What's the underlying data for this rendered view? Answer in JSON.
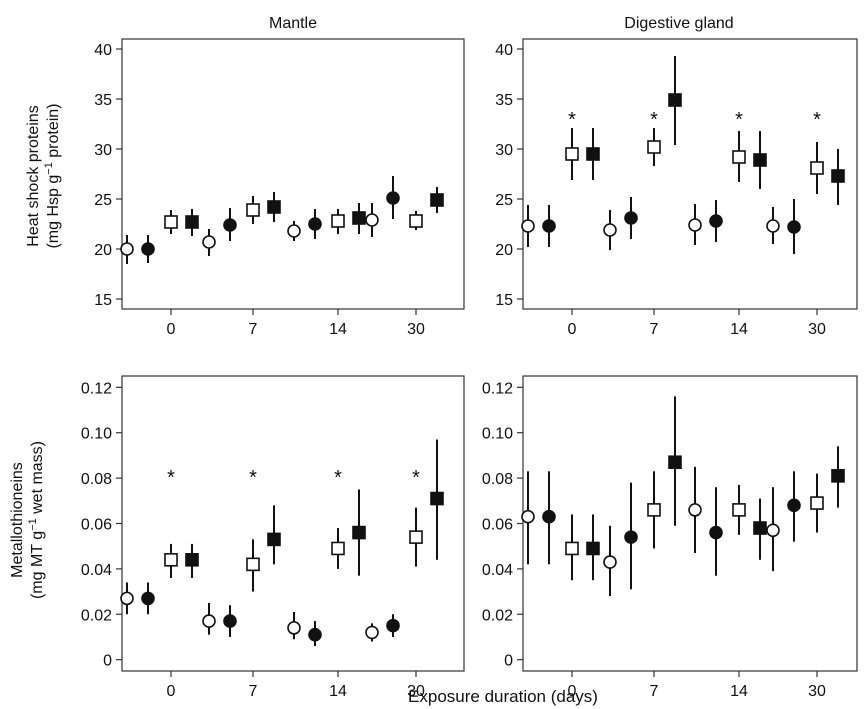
{
  "figure": {
    "xlabel": "Exposure duration (days)",
    "row_labels": [
      {
        "line1": "Heat shock proteins",
        "line2_pre": "(mg Hsp g",
        "sup": "−1",
        "line2_post": " protein)"
      },
      {
        "line1": "Metallothioneins",
        "line2_pre": "(mg MT g",
        "sup": "−1",
        "line2_post": " wet mass)"
      }
    ]
  },
  "colors": {
    "marker": "#111111",
    "open_fill": "#ffffff",
    "axis": "#333333"
  },
  "chart_data": [
    {
      "type": "scatter",
      "title": "Mantle",
      "ylabel": "Heat shock proteins (mg Hsp g−1 protein)",
      "ylim": [
        14,
        41
      ],
      "yticks": [
        15,
        20,
        25,
        30,
        35,
        40
      ],
      "ytick_labels": [
        "15",
        "20",
        "25",
        "30",
        "35",
        "40"
      ],
      "categories": [
        "0",
        "7",
        "14",
        "30"
      ],
      "series": [
        {
          "marker": "open-circle",
          "values": [
            20.0,
            20.7,
            21.8,
            22.9
          ],
          "err": [
            [
              18.5,
              21.4
            ],
            [
              19.3,
              22.0
            ],
            [
              20.8,
              22.8
            ],
            [
              21.2,
              24.6
            ]
          ]
        },
        {
          "marker": "filled-circle",
          "values": [
            20.0,
            22.4,
            22.5,
            25.1
          ],
          "err": [
            [
              18.6,
              21.4
            ],
            [
              20.8,
              24.1
            ],
            [
              21.0,
              24.0
            ],
            [
              23.0,
              27.3
            ]
          ]
        },
        {
          "marker": "open-square",
          "values": [
            22.7,
            23.9,
            22.8,
            22.8
          ],
          "err": [
            [
              21.5,
              23.9
            ],
            [
              22.5,
              25.3
            ],
            [
              21.5,
              24.0
            ],
            [
              21.9,
              23.8
            ]
          ]
        },
        {
          "marker": "filled-square",
          "values": [
            22.7,
            24.2,
            23.1,
            24.9
          ],
          "err": [
            [
              21.3,
              24.0
            ],
            [
              22.7,
              25.7
            ],
            [
              21.5,
              24.6
            ],
            [
              23.6,
              26.2
            ]
          ]
        }
      ],
      "significance": [
        "",
        "",
        "",
        ""
      ]
    },
    {
      "type": "scatter",
      "title": "Digestive gland",
      "ylabel": "",
      "ylim": [
        14,
        41
      ],
      "yticks": [
        15,
        20,
        25,
        30,
        35,
        40
      ],
      "ytick_labels": [
        "15",
        "20",
        "25",
        "30",
        "35",
        "40"
      ],
      "categories": [
        "0",
        "7",
        "14",
        "30"
      ],
      "series": [
        {
          "marker": "open-circle",
          "values": [
            22.3,
            21.9,
            22.4,
            22.3
          ],
          "err": [
            [
              20.2,
              24.4
            ],
            [
              19.9,
              23.9
            ],
            [
              20.4,
              24.5
            ],
            [
              20.5,
              24.2
            ]
          ]
        },
        {
          "marker": "filled-circle",
          "values": [
            22.3,
            23.1,
            22.8,
            22.2
          ],
          "err": [
            [
              20.2,
              24.4
            ],
            [
              21.0,
              25.2
            ],
            [
              20.7,
              24.9
            ],
            [
              19.5,
              25.0
            ]
          ]
        },
        {
          "marker": "open-square",
          "values": [
            29.5,
            30.2,
            29.2,
            28.1
          ],
          "err": [
            [
              26.9,
              32.1
            ],
            [
              28.3,
              32.1
            ],
            [
              26.7,
              31.8
            ],
            [
              25.5,
              30.7
            ]
          ]
        },
        {
          "marker": "filled-square",
          "values": [
            29.5,
            34.9,
            28.9,
            27.3
          ],
          "err": [
            [
              26.9,
              32.1
            ],
            [
              30.4,
              39.3
            ],
            [
              26.0,
              31.8
            ],
            [
              24.4,
              30.0
            ]
          ]
        }
      ],
      "significance": [
        "*",
        "*",
        "*",
        "*"
      ]
    },
    {
      "type": "scatter",
      "title": "",
      "ylabel": "Metallothioneins (mg MT g−1 wet mass)",
      "ylim": [
        -0.005,
        0.125
      ],
      "yticks": [
        0,
        0.02,
        0.04,
        0.06,
        0.08,
        0.1,
        0.12
      ],
      "ytick_labels": [
        "0",
        "0.02",
        "0.04",
        "0.06",
        "0.08",
        "0.10",
        "0.12"
      ],
      "categories": [
        "0",
        "7",
        "14",
        "30"
      ],
      "series": [
        {
          "marker": "open-circle",
          "values": [
            0.027,
            0.017,
            0.014,
            0.012
          ],
          "err": [
            [
              0.02,
              0.034
            ],
            [
              0.011,
              0.025
            ],
            [
              0.009,
              0.021
            ],
            [
              0.008,
              0.016
            ]
          ]
        },
        {
          "marker": "filled-circle",
          "values": [
            0.027,
            0.017,
            0.011,
            0.015
          ],
          "err": [
            [
              0.02,
              0.034
            ],
            [
              0.01,
              0.024
            ],
            [
              0.006,
              0.017
            ],
            [
              0.01,
              0.02
            ]
          ]
        },
        {
          "marker": "open-square",
          "values": [
            0.044,
            0.042,
            0.049,
            0.054
          ],
          "err": [
            [
              0.036,
              0.051
            ],
            [
              0.03,
              0.053
            ],
            [
              0.04,
              0.058
            ],
            [
              0.041,
              0.067
            ]
          ]
        },
        {
          "marker": "filled-square",
          "values": [
            0.044,
            0.053,
            0.056,
            0.071
          ],
          "err": [
            [
              0.036,
              0.051
            ],
            [
              0.042,
              0.068
            ],
            [
              0.037,
              0.075
            ],
            [
              0.044,
              0.097
            ]
          ]
        }
      ],
      "significance": [
        "*",
        "*",
        "*",
        "*"
      ]
    },
    {
      "type": "scatter",
      "title": "",
      "ylabel": "",
      "ylim": [
        -0.005,
        0.125
      ],
      "yticks": [
        0,
        0.02,
        0.04,
        0.06,
        0.08,
        0.1,
        0.12
      ],
      "ytick_labels": [
        "0",
        "0.02",
        "0.04",
        "0.06",
        "0.08",
        "0.10",
        "0.12"
      ],
      "categories": [
        "0",
        "7",
        "14",
        "30"
      ],
      "series": [
        {
          "marker": "open-circle",
          "values": [
            0.063,
            0.043,
            0.066,
            0.057
          ],
          "err": [
            [
              0.042,
              0.083
            ],
            [
              0.028,
              0.059
            ],
            [
              0.047,
              0.085
            ],
            [
              0.039,
              0.076
            ]
          ]
        },
        {
          "marker": "filled-circle",
          "values": [
            0.063,
            0.054,
            0.056,
            0.068
          ],
          "err": [
            [
              0.042,
              0.083
            ],
            [
              0.031,
              0.078
            ],
            [
              0.037,
              0.076
            ],
            [
              0.052,
              0.083
            ]
          ]
        },
        {
          "marker": "open-square",
          "values": [
            0.049,
            0.066,
            0.066,
            0.069
          ],
          "err": [
            [
              0.035,
              0.064
            ],
            [
              0.049,
              0.083
            ],
            [
              0.055,
              0.077
            ],
            [
              0.056,
              0.082
            ]
          ]
        },
        {
          "marker": "filled-square",
          "values": [
            0.049,
            0.087,
            0.058,
            0.081
          ],
          "err": [
            [
              0.035,
              0.064
            ],
            [
              0.059,
              0.116
            ],
            [
              0.044,
              0.071
            ],
            [
              0.067,
              0.094
            ]
          ]
        }
      ],
      "significance": [
        "",
        "",
        "",
        ""
      ]
    }
  ]
}
